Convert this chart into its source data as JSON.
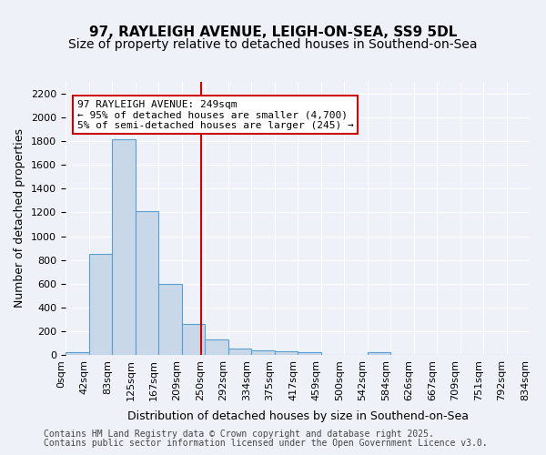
{
  "title1": "97, RAYLEIGH AVENUE, LEIGH-ON-SEA, SS9 5DL",
  "title2": "Size of property relative to detached houses in Southend-on-Sea",
  "xlabel": "Distribution of detached houses by size in Southend-on-Sea",
  "ylabel": "Number of detached properties",
  "bar_values": [
    25,
    850,
    1820,
    1210,
    600,
    260,
    130,
    50,
    40,
    30,
    20,
    0,
    0,
    25,
    0,
    0,
    0,
    0,
    0,
    0
  ],
  "bin_labels": [
    "0sqm",
    "42sqm",
    "83sqm",
    "125sqm",
    "167sqm",
    "209sqm",
    "250sqm",
    "292sqm",
    "334sqm",
    "375sqm",
    "417sqm",
    "459sqm",
    "500sqm",
    "542sqm",
    "584sqm",
    "626sqm",
    "667sqm",
    "709sqm",
    "751sqm",
    "792sqm",
    "834sqm"
  ],
  "bar_color": "#c8d8e8",
  "bar_edge_color": "#5a9fd4",
  "vline_x": 5.83,
  "vline_color": "#cc0000",
  "annotation_text": "97 RAYLEIGH AVENUE: 249sqm\n← 95% of detached houses are smaller (4,700)\n5% of semi-detached houses are larger (245) →",
  "annotation_box_color": "#ffffff",
  "annotation_box_edge": "#cc0000",
  "ylim": [
    0,
    2300
  ],
  "yticks": [
    0,
    200,
    400,
    600,
    800,
    1000,
    1200,
    1400,
    1600,
    1800,
    2000,
    2200
  ],
  "bg_color": "#eef2f8",
  "plot_bg_color": "#eef2f8",
  "footer1": "Contains HM Land Registry data © Crown copyright and database right 2025.",
  "footer2": "Contains public sector information licensed under the Open Government Licence v3.0.",
  "title1_fontsize": 11,
  "title2_fontsize": 10,
  "xlabel_fontsize": 9,
  "ylabel_fontsize": 9,
  "tick_fontsize": 8,
  "annotation_fontsize": 8,
  "footer_fontsize": 7
}
